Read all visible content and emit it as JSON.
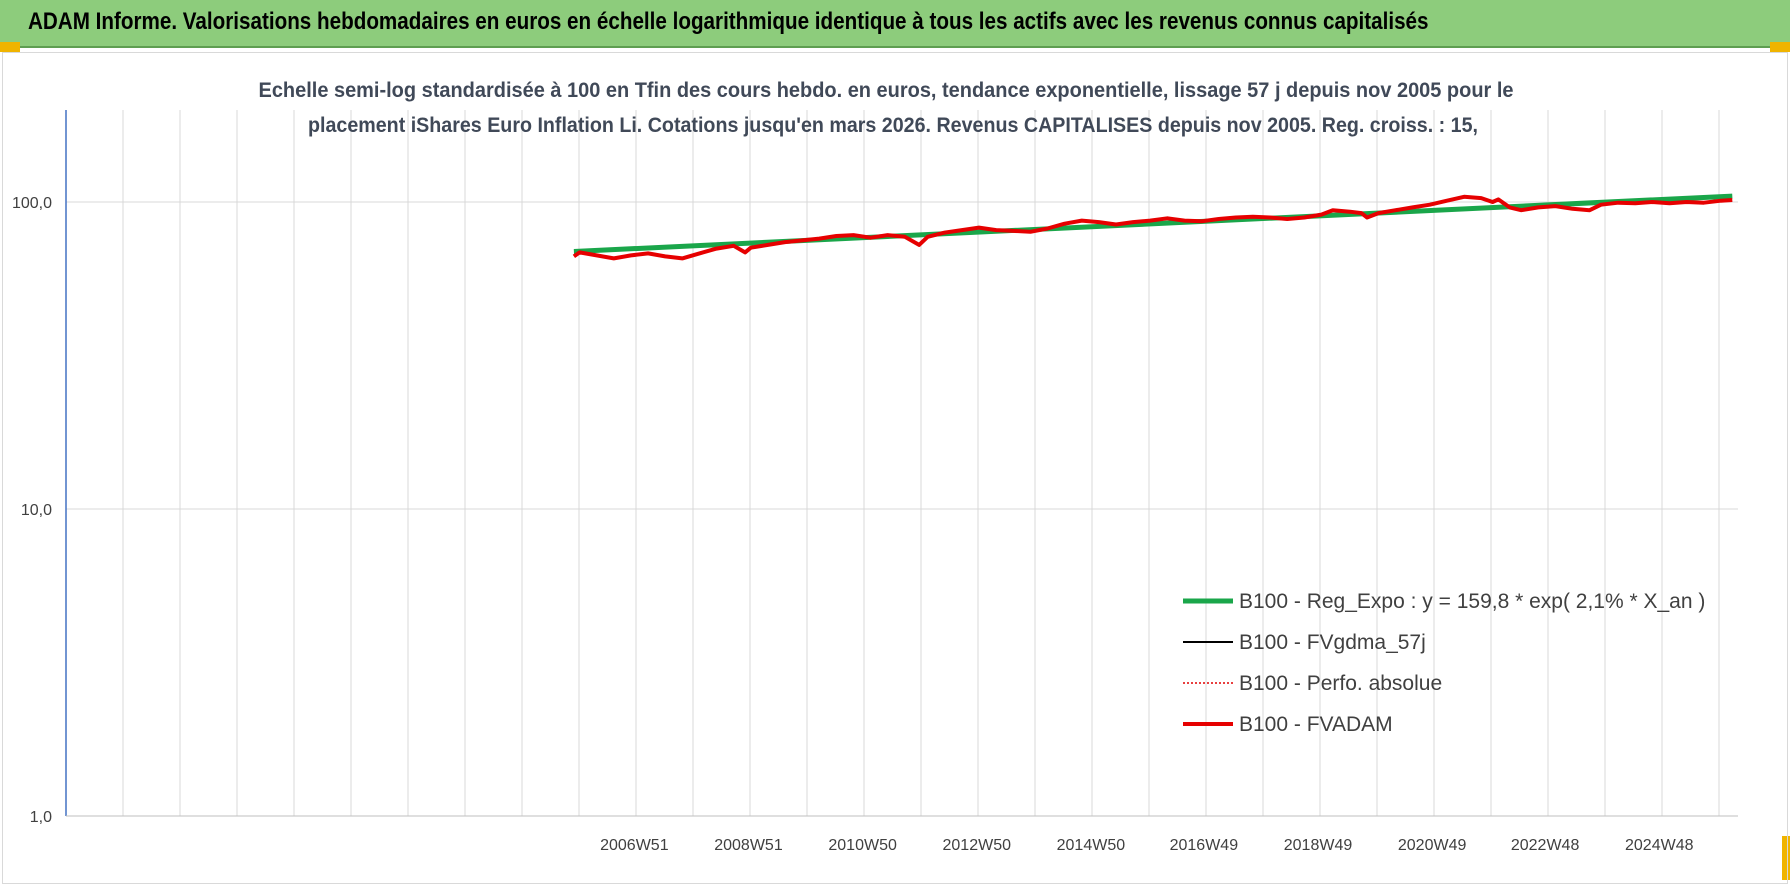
{
  "header": {
    "title": "ADAM Informe. Valorisations hebdomadaires en euros en échelle logarithmique identique à tous les actifs avec les revenus connus capitalisés"
  },
  "colors": {
    "header_bg": "#8dcc7c",
    "corner_accent": "#f0b400",
    "reg_expo": "#1aa64a",
    "fvgdma": "#000000",
    "perfo": "#e00000",
    "fvadam": "#e60000",
    "axis": "#4472c4",
    "grid": "#d9d9d9"
  },
  "chart_data": {
    "type": "line",
    "title": "",
    "subtitle_lines": [
      "Echelle semi-log standardisée à 100 en Tfin des cours hebdo. en euros, tendance exponentielle, lissage 57 j depuis nov 2005 pour le",
      "placement iShares Euro Inflation Li. Cotations jusqu'en mars 2026. Revenus CAPITALISES depuis nov 2005. Reg. croiss. : 15,"
    ],
    "y_scale": "log",
    "ylim": [
      1,
      200
    ],
    "y_ticks": [
      {
        "value": 100,
        "label": "100,0"
      },
      {
        "value": 10,
        "label": "10,0"
      },
      {
        "value": 1,
        "label": "1,0"
      }
    ],
    "x_start_year": 1997.0,
    "x_end_year": 2026.3,
    "x_ticks": [
      {
        "year": 2006.96,
        "label": "2006W51"
      },
      {
        "year": 2008.96,
        "label": "2008W51"
      },
      {
        "year": 2010.96,
        "label": "2010W50"
      },
      {
        "year": 2012.96,
        "label": "2012W50"
      },
      {
        "year": 2014.96,
        "label": "2014W50"
      },
      {
        "year": 2016.94,
        "label": "2016W49"
      },
      {
        "year": 2018.94,
        "label": "2018W49"
      },
      {
        "year": 2020.94,
        "label": "2020W49"
      },
      {
        "year": 2022.92,
        "label": "2022W48"
      },
      {
        "year": 2024.92,
        "label": "2024W48"
      }
    ],
    "gridlines": true,
    "legend_position": "lower-right",
    "series": [
      {
        "name": "B100 - Reg_Expo : y = 159,8 * exp( 2,1% *  X_an )",
        "key": "reg",
        "style": "thick",
        "points": [
          [
            2005.9,
            69.0
          ],
          [
            2026.2,
            104.5
          ]
        ]
      },
      {
        "name": "B100 - FVgdma_57j",
        "key": "fvgdma",
        "style": "solid"
      },
      {
        "name": "B100 - Perfo. absolue",
        "key": "perfo",
        "style": "dotted"
      },
      {
        "name": "B100 - FVADAM",
        "key": "fvadam",
        "style": "thick",
        "points": [
          [
            2005.9,
            66.5
          ],
          [
            2006.0,
            68.5
          ],
          [
            2006.3,
            67.0
          ],
          [
            2006.6,
            65.5
          ],
          [
            2006.9,
            67.0
          ],
          [
            2007.2,
            68.0
          ],
          [
            2007.5,
            66.5
          ],
          [
            2007.8,
            65.5
          ],
          [
            2008.1,
            68.0
          ],
          [
            2008.4,
            70.5
          ],
          [
            2008.7,
            72.0
          ],
          [
            2008.9,
            68.5
          ],
          [
            2009.0,
            71.0
          ],
          [
            2009.3,
            72.5
          ],
          [
            2009.6,
            74.0
          ],
          [
            2009.9,
            75.0
          ],
          [
            2010.2,
            76.0
          ],
          [
            2010.5,
            77.5
          ],
          [
            2010.8,
            78.0
          ],
          [
            2011.1,
            76.5
          ],
          [
            2011.4,
            78.0
          ],
          [
            2011.7,
            77.0
          ],
          [
            2011.95,
            72.5
          ],
          [
            2012.1,
            77.0
          ],
          [
            2012.4,
            79.5
          ],
          [
            2012.7,
            81.0
          ],
          [
            2013.0,
            82.5
          ],
          [
            2013.3,
            81.0
          ],
          [
            2013.6,
            80.5
          ],
          [
            2013.9,
            80.0
          ],
          [
            2014.2,
            82.0
          ],
          [
            2014.5,
            85.0
          ],
          [
            2014.8,
            87.0
          ],
          [
            2015.1,
            86.0
          ],
          [
            2015.4,
            84.5
          ],
          [
            2015.7,
            86.0
          ],
          [
            2016.0,
            87.0
          ],
          [
            2016.3,
            88.5
          ],
          [
            2016.6,
            87.0
          ],
          [
            2016.9,
            86.5
          ],
          [
            2017.2,
            88.0
          ],
          [
            2017.5,
            89.0
          ],
          [
            2017.8,
            89.5
          ],
          [
            2018.1,
            89.0
          ],
          [
            2018.4,
            88.0
          ],
          [
            2018.7,
            89.0
          ],
          [
            2019.0,
            91.0
          ],
          [
            2019.2,
            94.0
          ],
          [
            2019.5,
            93.0
          ],
          [
            2019.7,
            92.0
          ],
          [
            2019.8,
            89.0
          ],
          [
            2020.0,
            92.0
          ],
          [
            2020.3,
            94.0
          ],
          [
            2020.6,
            96.0
          ],
          [
            2020.9,
            98.0
          ],
          [
            2021.2,
            101.0
          ],
          [
            2021.5,
            104.0
          ],
          [
            2021.8,
            103.0
          ],
          [
            2022.0,
            100.0
          ],
          [
            2022.1,
            102.0
          ],
          [
            2022.3,
            96.0
          ],
          [
            2022.5,
            94.0
          ],
          [
            2022.8,
            96.0
          ],
          [
            2023.1,
            97.0
          ],
          [
            2023.4,
            95.0
          ],
          [
            2023.7,
            94.0
          ],
          [
            2023.9,
            98.0
          ],
          [
            2024.2,
            99.5
          ],
          [
            2024.5,
            99.0
          ],
          [
            2024.8,
            100.0
          ],
          [
            2025.1,
            99.0
          ],
          [
            2025.4,
            100.0
          ],
          [
            2025.7,
            99.5
          ],
          [
            2026.0,
            101.0
          ],
          [
            2026.2,
            101.5
          ]
        ]
      }
    ]
  }
}
